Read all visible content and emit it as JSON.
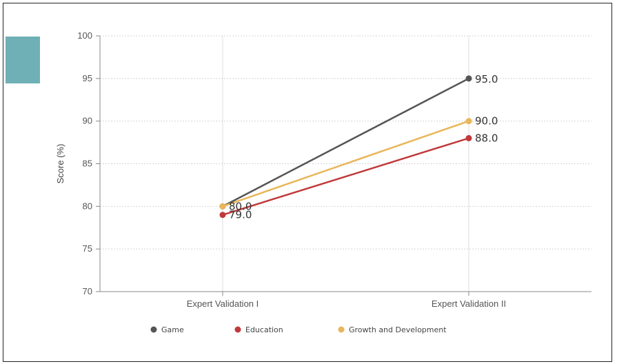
{
  "chart_data": {
    "type": "line",
    "categories": [
      "Expert Validation I",
      "Expert Validation II"
    ],
    "ylabel": "Score (%)",
    "ylim": [
      70,
      100
    ],
    "yticks": [
      70,
      75,
      80,
      85,
      90,
      95,
      100
    ],
    "grid": true,
    "legend_position": "bottom",
    "series": [
      {
        "name": "Game",
        "values": [
          80.0,
          95.0
        ],
        "labels": [
          "",
          "95.0"
        ],
        "color": "#555555"
      },
      {
        "name": "Education",
        "values": [
          79.0,
          88.0
        ],
        "labels": [
          "79.0",
          "88.0"
        ],
        "color": "#c0393b"
      },
      {
        "name": "Growth and Development",
        "values": [
          80.0,
          90.0
        ],
        "labels": [
          "80.0",
          "90.0"
        ],
        "color": "#e9b65a"
      }
    ]
  },
  "decor": {
    "accent_block_color": "#6fb0b7"
  }
}
